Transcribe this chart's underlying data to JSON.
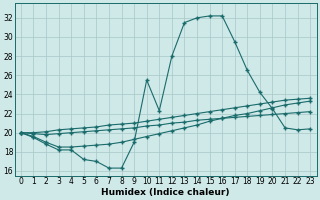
{
  "xlabel": "Humidex (Indice chaleur)",
  "background_color": "#cfe8e8",
  "grid_color": "#a8c8c8",
  "line_color": "#1a6b6b",
  "xlim": [
    -0.5,
    23.5
  ],
  "ylim": [
    15.5,
    33.5
  ],
  "xticks": [
    0,
    1,
    2,
    3,
    4,
    5,
    6,
    7,
    8,
    9,
    10,
    11,
    12,
    13,
    14,
    15,
    16,
    17,
    18,
    19,
    20,
    21,
    22,
    23
  ],
  "yticks": [
    16,
    18,
    20,
    22,
    24,
    26,
    28,
    30,
    32
  ],
  "line1_x": [
    0,
    1,
    2,
    3,
    4,
    5,
    6,
    7,
    8,
    9,
    10,
    11,
    12,
    13,
    14,
    15,
    16,
    17,
    18,
    19,
    20,
    21,
    22,
    23
  ],
  "line1_y": [
    20.0,
    19.5,
    18.8,
    18.2,
    18.2,
    17.2,
    17.0,
    16.3,
    16.3,
    19.0,
    25.5,
    22.3,
    28.0,
    31.5,
    32.0,
    32.2,
    32.2,
    29.5,
    26.5,
    24.2,
    22.5,
    20.5,
    20.3,
    20.4
  ],
  "line2_x": [
    0,
    1,
    2,
    3,
    4,
    5,
    6,
    7,
    8,
    9,
    10,
    11,
    12,
    13,
    14,
    15,
    16,
    17,
    18,
    19,
    20,
    21,
    22,
    23
  ],
  "line2_y": [
    20.0,
    20.0,
    20.1,
    20.3,
    20.4,
    20.5,
    20.6,
    20.8,
    20.9,
    21.0,
    21.2,
    21.4,
    21.6,
    21.8,
    22.0,
    22.2,
    22.4,
    22.6,
    22.8,
    23.0,
    23.2,
    23.4,
    23.5,
    23.6
  ],
  "line3_x": [
    0,
    1,
    2,
    3,
    4,
    5,
    6,
    7,
    8,
    9,
    10,
    11,
    12,
    13,
    14,
    15,
    16,
    17,
    18,
    19,
    20,
    21,
    22,
    23
  ],
  "line3_y": [
    20.0,
    19.9,
    19.8,
    19.9,
    20.0,
    20.1,
    20.2,
    20.3,
    20.4,
    20.5,
    20.7,
    20.8,
    21.0,
    21.1,
    21.3,
    21.4,
    21.5,
    21.6,
    21.7,
    21.8,
    21.9,
    22.0,
    22.1,
    22.2
  ],
  "line4_x": [
    0,
    1,
    2,
    3,
    4,
    5,
    6,
    7,
    8,
    9,
    10,
    11,
    12,
    13,
    14,
    15,
    16,
    17,
    18,
    19,
    20,
    21,
    22,
    23
  ],
  "line4_y": [
    20.0,
    19.6,
    19.0,
    18.5,
    18.5,
    18.6,
    18.7,
    18.8,
    19.0,
    19.3,
    19.6,
    19.9,
    20.2,
    20.5,
    20.8,
    21.2,
    21.5,
    21.8,
    22.0,
    22.3,
    22.6,
    22.9,
    23.1,
    23.3
  ]
}
